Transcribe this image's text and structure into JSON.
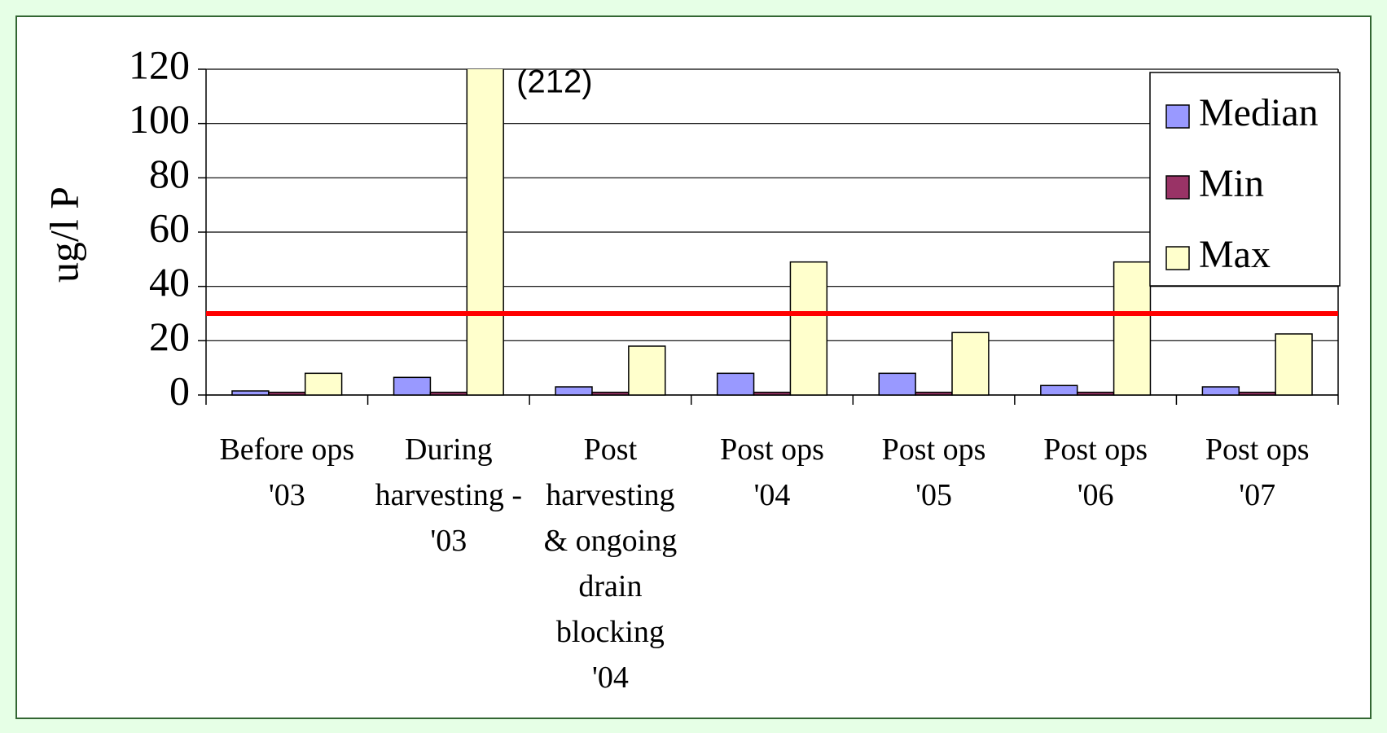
{
  "chart_data": {
    "type": "bar",
    "y_label": "ug/l P",
    "categories": [
      "Before ops\n'03",
      "During\nharvesting -\n'03",
      "Post\nharvesting\n& ongoing\ndrain\nblocking\n'04",
      "Post ops\n'04",
      "Post ops\n'05",
      "Post ops\n'06",
      "Post ops\n'07"
    ],
    "series": [
      {
        "name": "Median",
        "color": "#9999ff",
        "values": [
          1.5,
          6.5,
          3,
          8,
          8,
          3.5,
          3
        ]
      },
      {
        "name": "Min",
        "color": "#993366",
        "values": [
          1,
          1,
          1,
          1,
          1,
          1,
          1
        ]
      },
      {
        "name": "Max",
        "color": "#ffffcc",
        "values": [
          8,
          212,
          18,
          49,
          23,
          49,
          22.5
        ],
        "value_labels": [
          null,
          "(212)",
          null,
          null,
          null,
          null,
          null
        ]
      }
    ],
    "reference_line": {
      "value": 30,
      "color": "#ff0000"
    },
    "ylim": [
      0,
      120
    ],
    "yticks": [
      0,
      20,
      40,
      60,
      80,
      100,
      120
    ],
    "grid": true,
    "legend": "upper right"
  }
}
